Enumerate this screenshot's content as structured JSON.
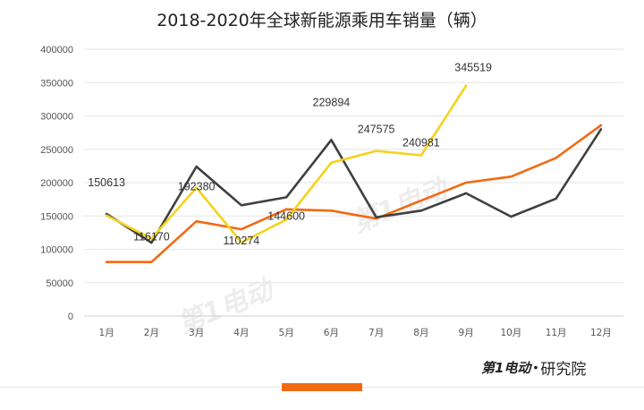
{
  "title": "2018-2020年全球新能源乘用车销量（辆）",
  "brand": {
    "logo_text": "第1电动",
    "suffix": "研究院"
  },
  "colors": {
    "accent": "#f26a13",
    "series_2018": "#f26a13",
    "series_2019": "#404040",
    "series_2020": "#f5d21a",
    "grid": "#e6e6e6"
  },
  "chart_data": {
    "type": "line",
    "title": "2018-2020年全球新能源乘用车销量（辆）",
    "categories": [
      "1月",
      "2月",
      "3月",
      "4月",
      "5月",
      "6月",
      "7月",
      "8月",
      "9月",
      "10月",
      "11月",
      "12月"
    ],
    "ylim": [
      0,
      400000
    ],
    "yticks": [
      "0",
      "50000",
      "100000",
      "150000",
      "200000",
      "250000",
      "300000",
      "350000",
      "400000"
    ],
    "grid": true,
    "legend": "none",
    "series": [
      {
        "values": [
          81000,
          81000,
          142000,
          130000,
          160000,
          158000,
          146000,
          173000,
          200000,
          209000,
          237000,
          286000
        ]
      },
      {
        "values": [
          153000,
          110000,
          224000,
          166000,
          178000,
          264000,
          148000,
          158000,
          184000,
          149000,
          176000,
          280000
        ]
      },
      {
        "values": [
          150613,
          116170,
          192380,
          110274,
          144600,
          229894,
          247575,
          240981,
          345519,
          null,
          null,
          null
        ],
        "data_labels": [
          "150613",
          "116170",
          "192380",
          "110274",
          "144600",
          "229894",
          "247575",
          "240981",
          "345519"
        ]
      }
    ]
  }
}
